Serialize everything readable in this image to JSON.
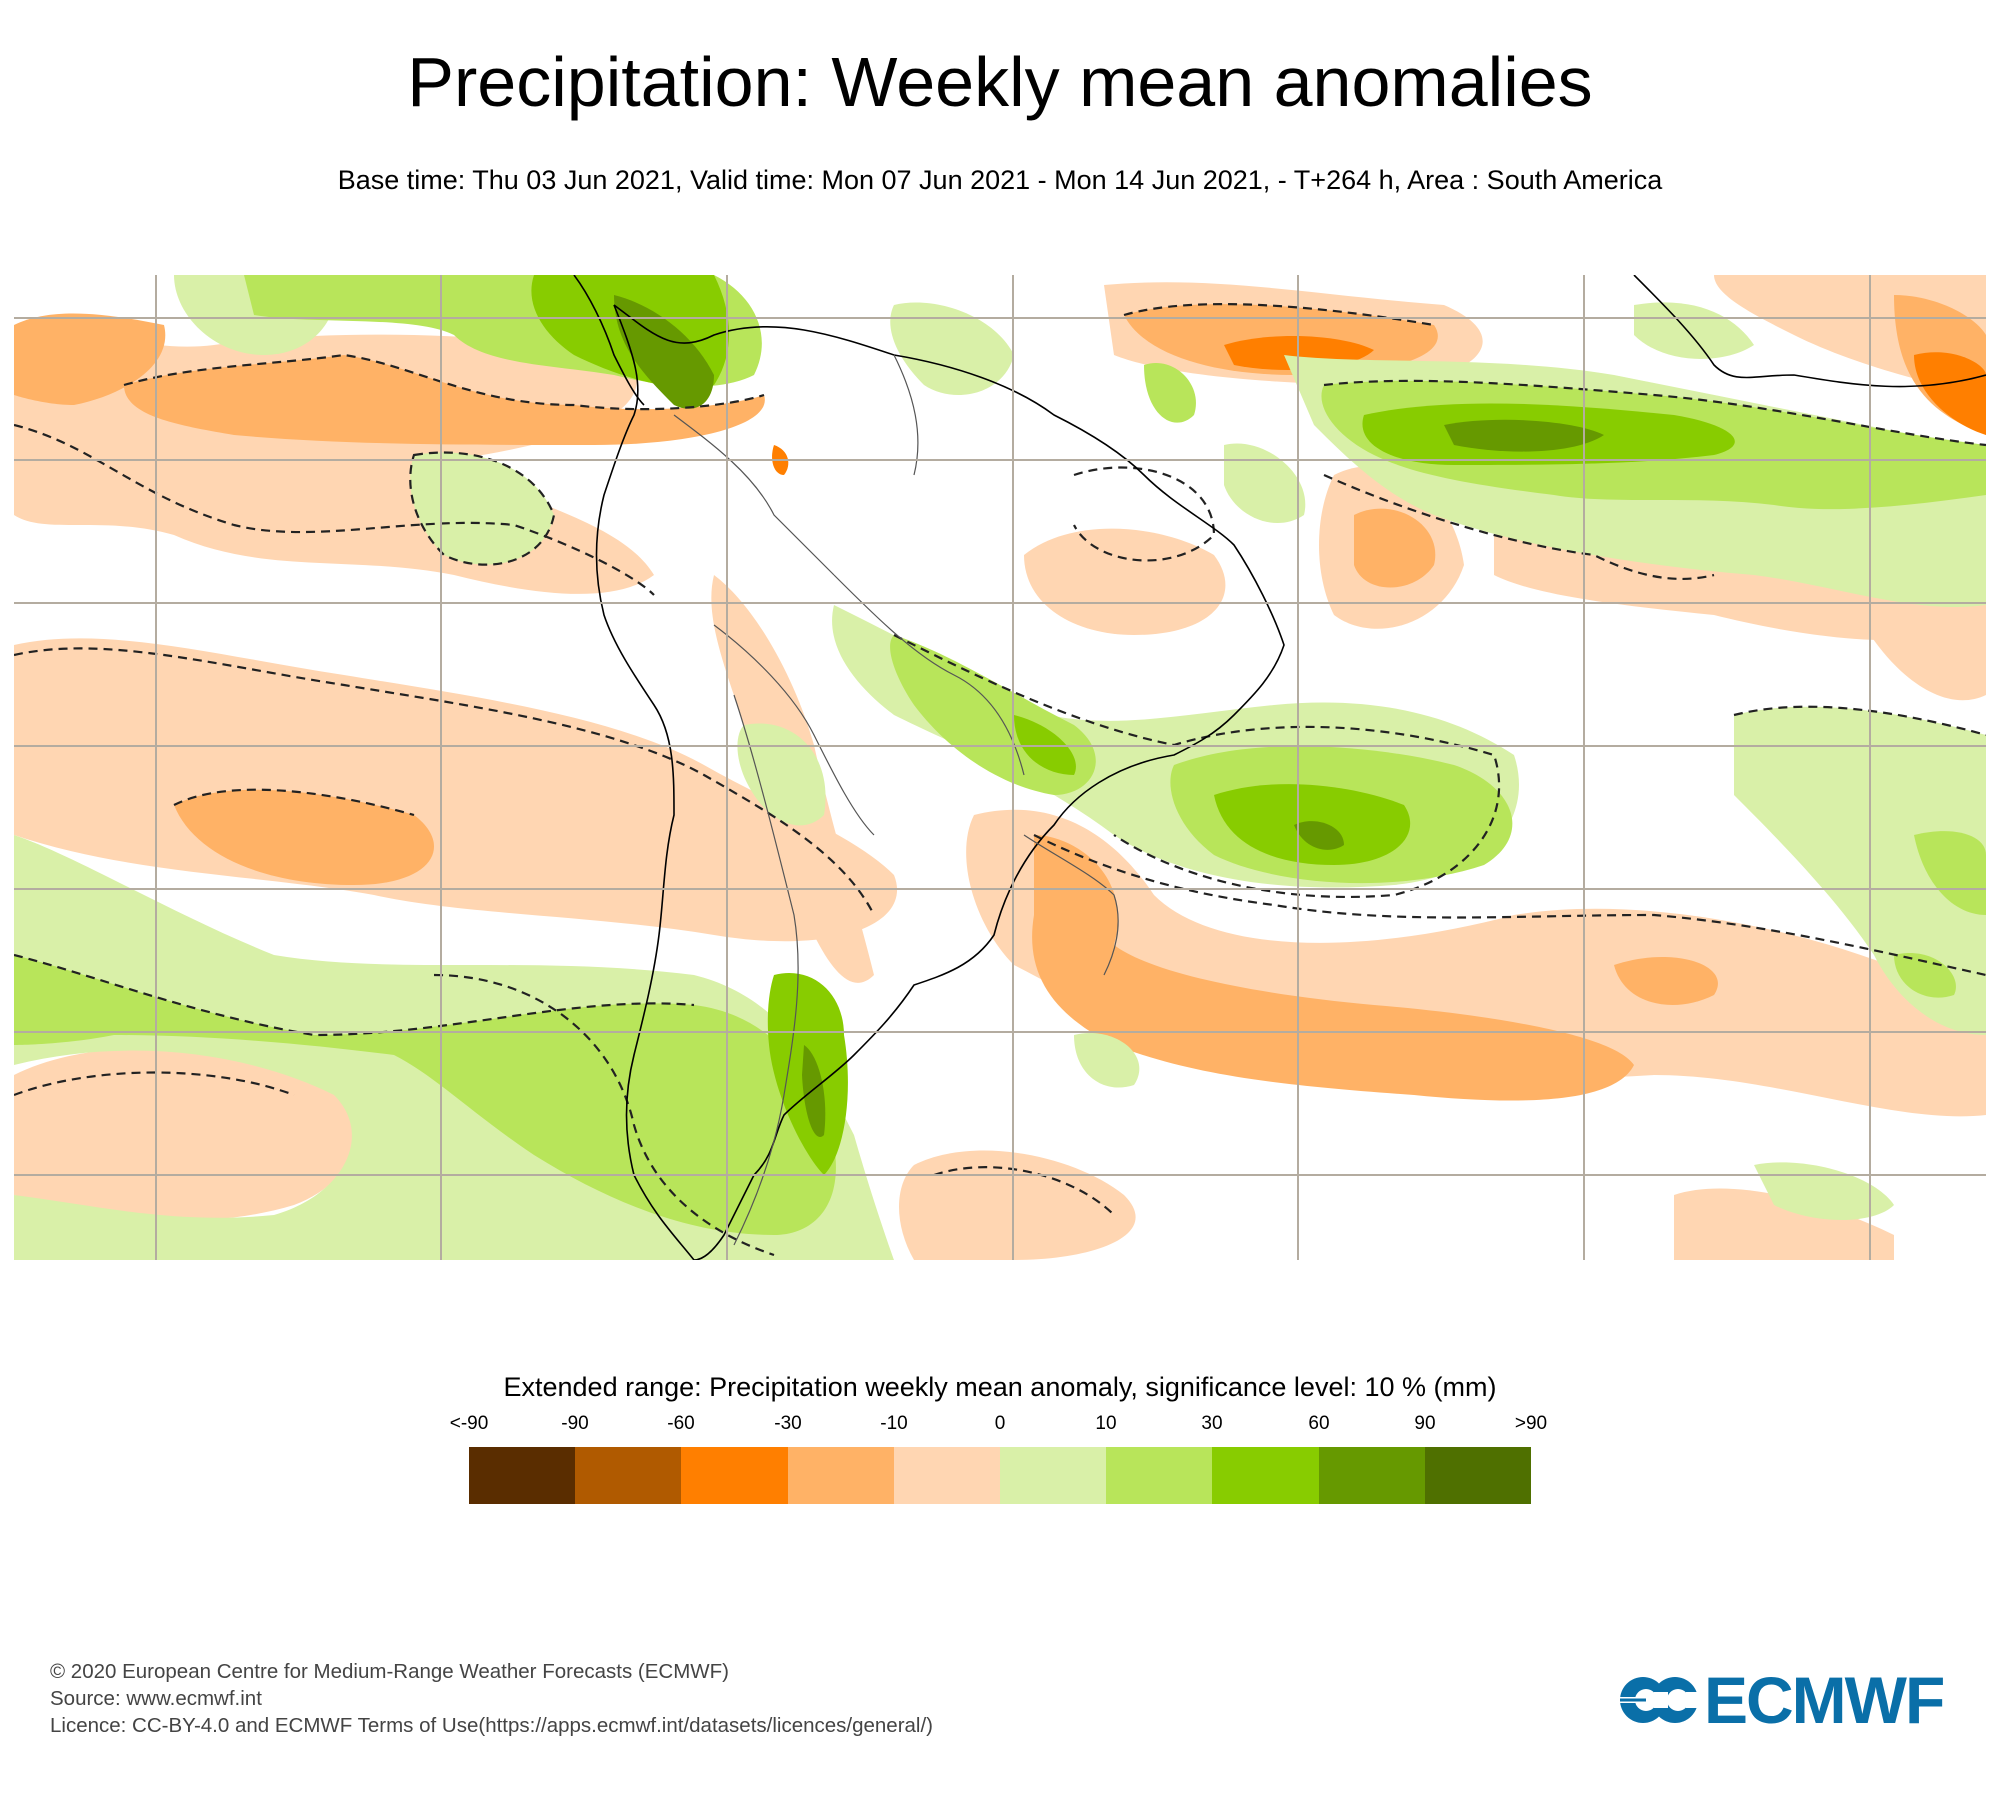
{
  "header": {
    "title": "Precipitation: Weekly mean anomalies",
    "subtitle": "Base time: Thu 03 Jun 2021, Valid time: Mon 07 Jun 2021 - Mon 14 Jun 2021, - T+264 h, Area : South America"
  },
  "map": {
    "area": "South America",
    "variable": "Precipitation weekly mean anomaly",
    "units": "mm",
    "significance_contour": "dashed",
    "colors": {
      "gridline": "#b4aca0",
      "coastline": "#000000",
      "border": "#555555"
    }
  },
  "legend": {
    "title": "Extended range: Precipitation weekly mean anomaly, significance level: 10 % (mm)",
    "labels": [
      "<-90",
      "-90",
      "-60",
      "-30",
      "-10",
      "0",
      "10",
      "30",
      "60",
      "90",
      ">90"
    ],
    "colors": [
      "#5a2d00",
      "#b05a00",
      "#ff7f00",
      "#ffb266",
      "#ffd6b2",
      "#d9f0a8",
      "#b8e55a",
      "#88cc00",
      "#669900",
      "#4f7000"
    ]
  },
  "footer": {
    "copyright": "© 2020 European Centre for Medium-Range Weather Forecasts (ECMWF)",
    "source": "Source: www.ecmwf.int",
    "licence": "Licence: CC-BY-4.0 and ECMWF Terms of Use(https://apps.ecmwf.int/datasets/licences/general/)"
  },
  "logo": {
    "text": "ECMWF",
    "color": "#0a6fa8"
  }
}
